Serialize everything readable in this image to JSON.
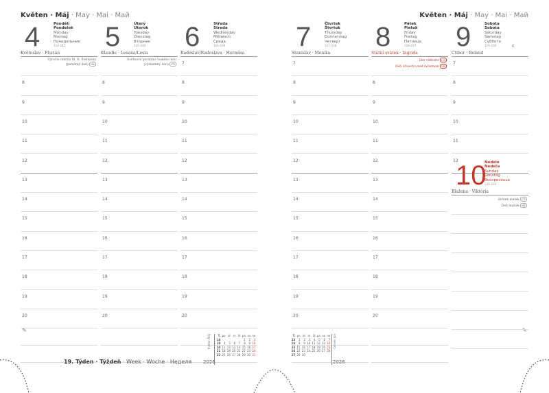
{
  "left_header": {
    "bold": "Květen · Máj",
    "light": "· May · Mai · Май"
  },
  "right_header": {
    "bold": "Květen · Máj",
    "light": "· May · Mai · Май"
  },
  "days": [
    {
      "num": "4",
      "cz": "Pondělí",
      "sk": "Pondelok",
      "en": "Monday",
      "de": "Montag",
      "ru": "Понедельник",
      "count": "124–241",
      "nameday": "Květoslav · Florián",
      "notes": [
        {
          "text": "Výročie úmrtia M. R. Štefánika (pamätný deň)",
          "tag": "SK",
          "red": false
        }
      ]
    },
    {
      "num": "5",
      "cz": "Úterý",
      "sk": "Utorok",
      "en": "Tuesday",
      "de": "Dienstag",
      "ru": "Вторник",
      "count": "125–240",
      "nameday": "Klaudie · Lesana/Lesia",
      "notes": [
        {
          "text": "Květnové povstání českého lidu (významný den)",
          "tag": "CZ",
          "red": false
        }
      ]
    },
    {
      "num": "6",
      "cz": "Středa",
      "sk": "Streda",
      "en": "Wednesday",
      "de": "Mittwoch",
      "ru": "Среда",
      "count": "126–239",
      "nameday": "Radoslav/Radoslava · Hermína",
      "notes": []
    },
    {
      "num": "7",
      "cz": "Čtvrtek",
      "sk": "Štvrtok",
      "en": "Thursday",
      "de": "Donnerstag",
      "ru": "Четверг",
      "count": "127–238",
      "nameday": "Stanislav · Monika",
      "notes": []
    },
    {
      "num": "8",
      "cz": "Pátek",
      "sk": "Piatok",
      "en": "Friday",
      "de": "Freitag",
      "ru": "Пятница",
      "count": "128–237",
      "nameday": "Státní svátek · Ingrida",
      "notes": [
        {
          "text": "Den vítězství",
          "tag": "CZ",
          "red": true
        },
        {
          "text": "Deň víťazstva nad fašizmom",
          "tag": "SK",
          "red": true
        }
      ]
    },
    {
      "num": "9",
      "cz": "Sobota",
      "sk": "Sobota",
      "en": "Saturday",
      "de": "Samstag",
      "ru": "Суббота",
      "count": "129–236",
      "nameday": "Ctibor · Roland",
      "notes": []
    }
  ],
  "sunday": {
    "num": "10",
    "cz": "Neděle",
    "sk": "Nedeľa",
    "en": "Sunday",
    "de": "Sonntag",
    "ru": "Воскресенье",
    "count": "130–235",
    "nameday": "Blažena · Viktória",
    "notes": [
      {
        "text": "Svátek matek",
        "tag": "CZ"
      },
      {
        "text": "Deň matiek",
        "tag": "SK"
      }
    ]
  },
  "hours": [
    "7",
    "8",
    "9",
    "10",
    "11",
    "12",
    "13",
    "14",
    "15",
    "16",
    "17",
    "18",
    "19",
    "20"
  ],
  "footer": {
    "week": "19. Týden · Týždeň",
    "rest": " · Week · Woche · Неделя"
  },
  "minicals": [
    {
      "label": "Květen Máj",
      "year": "2026",
      "head": [
        "T.",
        "po",
        "út",
        "st",
        "čt",
        "pá",
        "so",
        "ne"
      ],
      "rows": [
        [
          "18",
          "",
          "",
          "",
          "",
          "1",
          "2",
          "3"
        ],
        [
          "19",
          "4",
          "5",
          "6",
          "7",
          "8",
          "9",
          "10"
        ],
        [
          "20",
          "11",
          "12",
          "13",
          "14",
          "15",
          "16",
          "17"
        ],
        [
          "21",
          "18",
          "19",
          "20",
          "21",
          "22",
          "23",
          "24"
        ],
        [
          "22",
          "25",
          "26",
          "27",
          "28",
          "29",
          "30",
          "31"
        ]
      ]
    },
    {
      "label": "Červen Jún",
      "year": "2026",
      "head": [
        "T.",
        "po",
        "út",
        "st",
        "čt",
        "pá",
        "so",
        "ne"
      ],
      "rows": [
        [
          "23",
          "1",
          "2",
          "3",
          "4",
          "5",
          "6",
          "7"
        ],
        [
          "24",
          "8",
          "9",
          "10",
          "11",
          "12",
          "13",
          "14"
        ],
        [
          "25",
          "15",
          "16",
          "17",
          "18",
          "19",
          "20",
          "21"
        ],
        [
          "26",
          "22",
          "23",
          "24",
          "25",
          "26",
          "27",
          "28"
        ],
        [
          "27",
          "29",
          "30",
          "",
          "",
          "",
          "",
          ""
        ]
      ]
    }
  ],
  "colors": {
    "accent": "#c0392b",
    "text": "#444444",
    "rule": "#999999"
  }
}
